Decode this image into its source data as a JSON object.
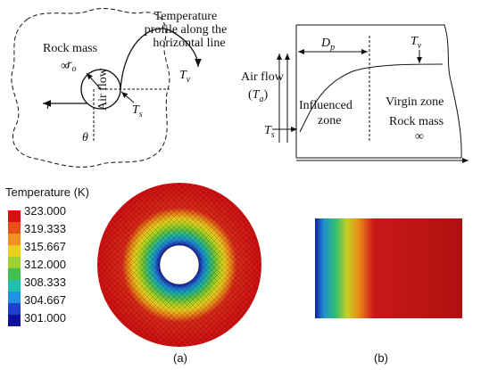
{
  "panel_a_schematic": {
    "region": "Rock mass",
    "infinity": "∞",
    "air_flow": "Air flow",
    "radius": {
      "main": "r",
      "sub": "o"
    },
    "r": "r",
    "theta": "θ",
    "ts": {
      "main": "T",
      "sub": "s"
    },
    "tv": {
      "main": "T",
      "sub": "v"
    },
    "profile_note": [
      "Temperature",
      "profile along the",
      "horizontal line"
    ]
  },
  "panel_b_schematic": {
    "dp": {
      "main": "D",
      "sub": "p"
    },
    "tv": {
      "main": "T",
      "sub": "v"
    },
    "air_flow": "Air flow",
    "ta": {
      "open": "(",
      "main": "T",
      "sub": "a",
      "close": ")"
    },
    "influenced": [
      "Influenced",
      "zone"
    ],
    "virgin": "Virgin zone",
    "rock": "Rock mass",
    "infinity": "∞",
    "ts": {
      "main": "T",
      "sub": "s"
    }
  },
  "colorbar": {
    "title": "Temperature (K)",
    "labels": [
      "323.000",
      "319.333",
      "315.667",
      "312.000",
      "308.333",
      "304.667",
      "301.000"
    ]
  },
  "captions": [
    "(a)",
    "(b)"
  ]
}
